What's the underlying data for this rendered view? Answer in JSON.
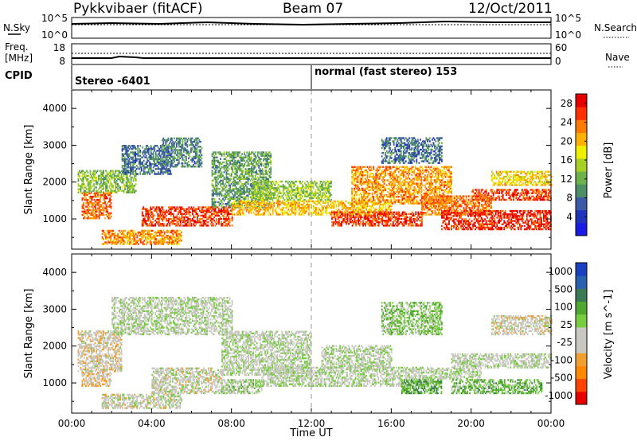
{
  "header": {
    "radar": "Pykkvibaer (fitACF)",
    "beam": "Beam 07",
    "date": "12/Oct/2011"
  },
  "top_panels": {
    "nsky_label": "N.Sky",
    "nsky_ticks": [
      "10^5",
      "10^0"
    ],
    "nsearch_label": "N.Search",
    "nsearch_ticks": [
      "10^5",
      "10^0"
    ],
    "freq_label": "Freq.",
    "freq_unit": "[MHz]",
    "freq_ticks": [
      "18",
      "8"
    ],
    "nave_label": "Nave",
    "nave_ticks": [
      "60",
      "0"
    ],
    "cpid_label": "CPID",
    "cpid_segments": [
      "Stereo -6401",
      "normal (fast stereo) 153"
    ]
  },
  "chart_data": [
    {
      "type": "heatmap",
      "title": "",
      "xlabel": "",
      "ylabel": "Slant Range [km]",
      "xlim": [
        0,
        24
      ],
      "ylim": [
        180,
        4500
      ],
      "x_tick_labels": [
        "00:00",
        "04:00",
        "08:00",
        "12:00",
        "16:00",
        "20:00",
        "00:00"
      ],
      "y_ticks": [
        1000,
        2000,
        3000,
        4000
      ],
      "colorbar": {
        "label": "Power [dB]",
        "range": [
          0,
          30
        ],
        "ticks": [
          4,
          8,
          12,
          16,
          20,
          24,
          28
        ],
        "colors": [
          "#1a1ae6",
          "#2233bb",
          "#3d5aa8",
          "#4e8f68",
          "#6db24a",
          "#a8d024",
          "#eef000",
          "#ffb000",
          "#ff7a00",
          "#ff3000",
          "#e60000"
        ]
      },
      "regions": [
        {
          "t": [
            0.3,
            3.2
          ],
          "r": [
            1700,
            2300
          ],
          "value": 13
        },
        {
          "t": [
            0.5,
            2.0
          ],
          "r": [
            1000,
            1700
          ],
          "value": 24
        },
        {
          "t": [
            1.5,
            5.5
          ],
          "r": [
            300,
            700
          ],
          "value": 22
        },
        {
          "t": [
            2.5,
            5.0
          ],
          "r": [
            2200,
            3000
          ],
          "value": 8
        },
        {
          "t": [
            3.5,
            8.0
          ],
          "r": [
            800,
            1300
          ],
          "value": 26
        },
        {
          "t": [
            4.5,
            6.5
          ],
          "r": [
            2400,
            3200
          ],
          "value": 9
        },
        {
          "t": [
            7.0,
            10.0
          ],
          "r": [
            1300,
            2800
          ],
          "value": 11
        },
        {
          "t": [
            8.0,
            16.0
          ],
          "r": [
            1100,
            1500
          ],
          "value": 20
        },
        {
          "t": [
            9.0,
            13.0
          ],
          "r": [
            1500,
            2000
          ],
          "value": 14
        },
        {
          "t": [
            13.0,
            17.5
          ],
          "r": [
            800,
            1200
          ],
          "value": 26
        },
        {
          "t": [
            14.0,
            19.0
          ],
          "r": [
            1400,
            2400
          ],
          "value": 22
        },
        {
          "t": [
            15.5,
            18.5
          ],
          "r": [
            2500,
            3200
          ],
          "value": 8
        },
        {
          "t": [
            17.5,
            21.0
          ],
          "r": [
            1100,
            1600
          ],
          "value": 23
        },
        {
          "t": [
            18.5,
            24.0
          ],
          "r": [
            700,
            1200
          ],
          "value": 27
        },
        {
          "t": [
            20.0,
            24.0
          ],
          "r": [
            1500,
            1800
          ],
          "value": 26
        },
        {
          "t": [
            21.0,
            24.0
          ],
          "r": [
            1900,
            2300
          ],
          "value": 19
        }
      ]
    },
    {
      "type": "heatmap",
      "title": "",
      "xlabel": "Time UT",
      "ylabel": "Slant Range [km]",
      "xlim": [
        0,
        24
      ],
      "ylim": [
        180,
        4500
      ],
      "x_tick_labels": [
        "00:00",
        "04:00",
        "08:00",
        "12:00",
        "16:00",
        "20:00",
        "00:00"
      ],
      "y_ticks": [
        1000,
        2000,
        3000,
        4000
      ],
      "colorbar": {
        "label": "Velocity [m s^-1]",
        "range": [
          -1200,
          1200
        ],
        "ticks": [
          "1000",
          "500",
          "100",
          "25",
          "-25",
          "-100",
          "-500",
          "-1000"
        ],
        "colors": [
          "#e60000",
          "#ff4400",
          "#ff8800",
          "#f0a030",
          "#c8c8c0",
          "#c8c8c0",
          "#78cc40",
          "#50a830",
          "#3a7a55",
          "#2a60b0",
          "#1a3fc0"
        ]
      },
      "regions": [
        {
          "t": [
            0.3,
            2.5
          ],
          "r": [
            1300,
            2400
          ],
          "value": -160
        },
        {
          "t": [
            0.5,
            2.0
          ],
          "r": [
            900,
            1300
          ],
          "value": -300
        },
        {
          "t": [
            1.5,
            5.5
          ],
          "r": [
            300,
            700
          ],
          "value": -80
        },
        {
          "t": [
            2.0,
            8.0
          ],
          "r": [
            2300,
            3300
          ],
          "value": 0
        },
        {
          "t": [
            4.0,
            7.5
          ],
          "r": [
            700,
            1400
          ],
          "value": -90
        },
        {
          "t": [
            7.5,
            12.0
          ],
          "r": [
            1200,
            2400
          ],
          "value": 0
        },
        {
          "t": [
            7.5,
            9.5
          ],
          "r": [
            700,
            1100
          ],
          "value": 90
        },
        {
          "t": [
            9.5,
            18.0
          ],
          "r": [
            900,
            1400
          ],
          "value": 0
        },
        {
          "t": [
            12.5,
            16.0
          ],
          "r": [
            1400,
            2000
          ],
          "value": 0
        },
        {
          "t": [
            15.5,
            18.5
          ],
          "r": [
            2300,
            3200
          ],
          "value": 220
        },
        {
          "t": [
            16.5,
            18.5
          ],
          "r": [
            700,
            1100
          ],
          "value": 400
        },
        {
          "t": [
            18.0,
            20.5
          ],
          "r": [
            1100,
            1400
          ],
          "value": 0
        },
        {
          "t": [
            19.0,
            23.5
          ],
          "r": [
            700,
            1100
          ],
          "value": 300
        },
        {
          "t": [
            19.0,
            24.0
          ],
          "r": [
            1400,
            1800
          ],
          "value": 0
        },
        {
          "t": [
            21.0,
            24.0
          ],
          "r": [
            2300,
            2800
          ],
          "value": -120
        }
      ]
    }
  ]
}
